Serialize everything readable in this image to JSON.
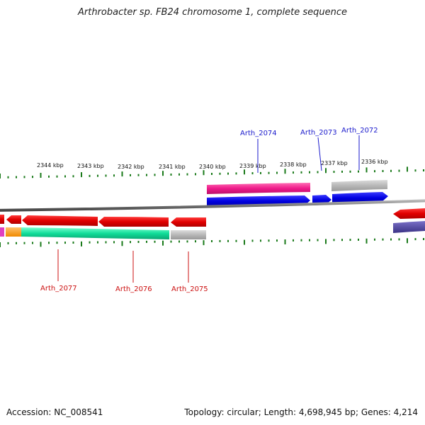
{
  "title": "Arthrobacter sp. FB24 chromosome 1, complete sequence",
  "footer": {
    "accession": "Accession: NC_008541",
    "summary": "Topology: circular; Length: 4,698,945 bp; Genes: 4,214"
  },
  "scale_labels": [
    "2344 kbp",
    "2343 kbp",
    "2342 kbp",
    "2341 kbp",
    "2340 kbp",
    "2339 kbp",
    "2338 kbp",
    "2337 kbp",
    "2336 kbp"
  ],
  "gene_labels_top": [
    "Arth_2074",
    "Arth_2073",
    "Arth_2072"
  ],
  "gene_labels_bottom": [
    "Arth_2077",
    "Arth_2076",
    "Arth_2075"
  ],
  "colors": {
    "forward_label": "#1a1acc",
    "reverse_label": "#cc1111",
    "tick": "#1a7a1a",
    "backbone": "#777777"
  }
}
